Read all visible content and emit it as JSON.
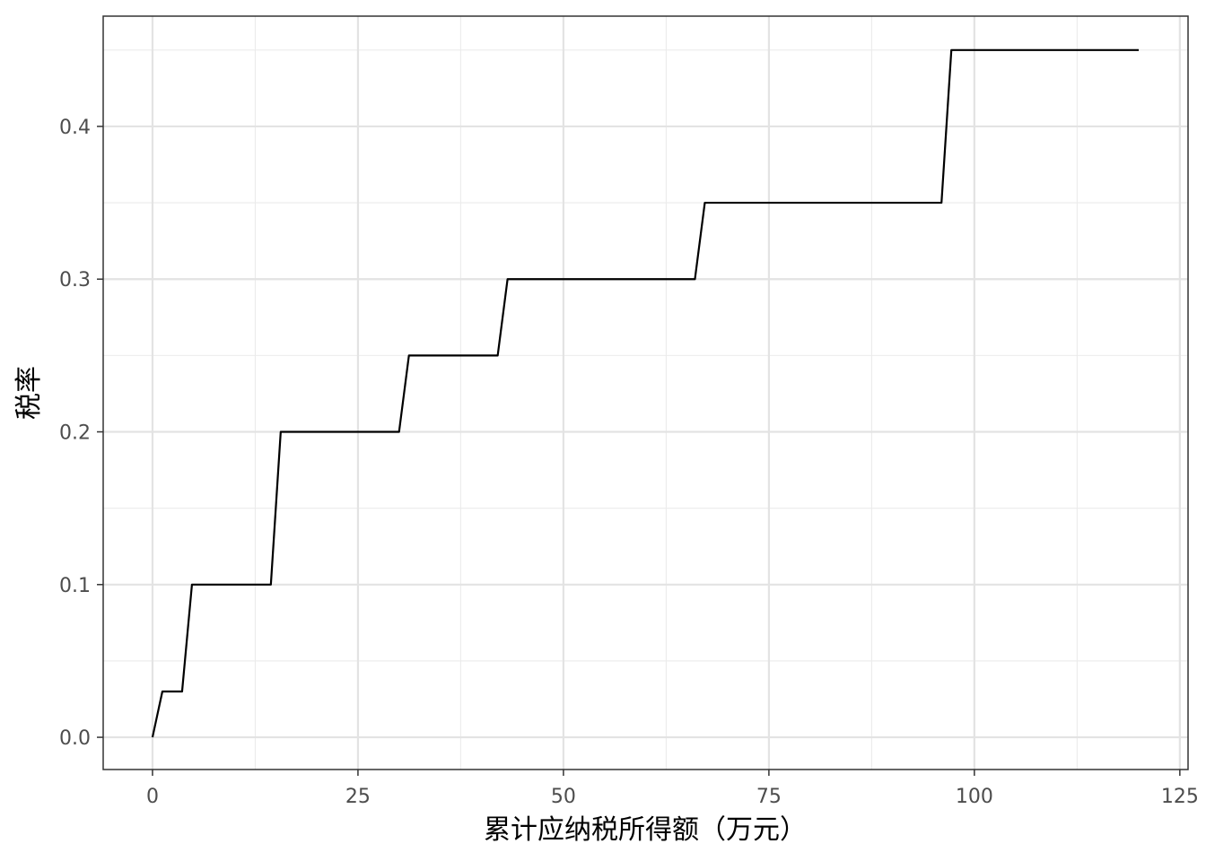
{
  "chart_data": {
    "type": "line",
    "title": "",
    "xlabel": "累计应纳税所得额（万元）",
    "ylabel": "税率",
    "xlim": [
      -6,
      126
    ],
    "ylim": [
      -0.0211,
      0.4722
    ],
    "x_ticks": [
      0,
      25,
      50,
      75,
      100,
      125
    ],
    "y_ticks": [
      0.0,
      0.1,
      0.2,
      0.3,
      0.4
    ],
    "x_tick_labels": [
      "0",
      "25",
      "50",
      "75",
      "100",
      "125"
    ],
    "y_tick_labels": [
      "0.0",
      "0.1",
      "0.2",
      "0.3",
      "0.4"
    ],
    "x_minor": [
      12.5,
      37.5,
      62.5,
      87.5,
      112.5
    ],
    "y_minor": [
      0.05,
      0.15,
      0.25,
      0.35,
      0.45
    ],
    "grid": true,
    "legend": "none",
    "series": [
      {
        "color": "#000000",
        "x": [
          0,
          1.2,
          3.6,
          4.8,
          14.4,
          15.6,
          30,
          31.2,
          42,
          43.2,
          66,
          67.2,
          96,
          97.2,
          120
        ],
        "y": [
          0,
          0.03,
          0.03,
          0.1,
          0.1,
          0.2,
          0.2,
          0.25,
          0.25,
          0.3,
          0.3,
          0.35,
          0.35,
          0.45,
          0.45
        ]
      }
    ]
  }
}
